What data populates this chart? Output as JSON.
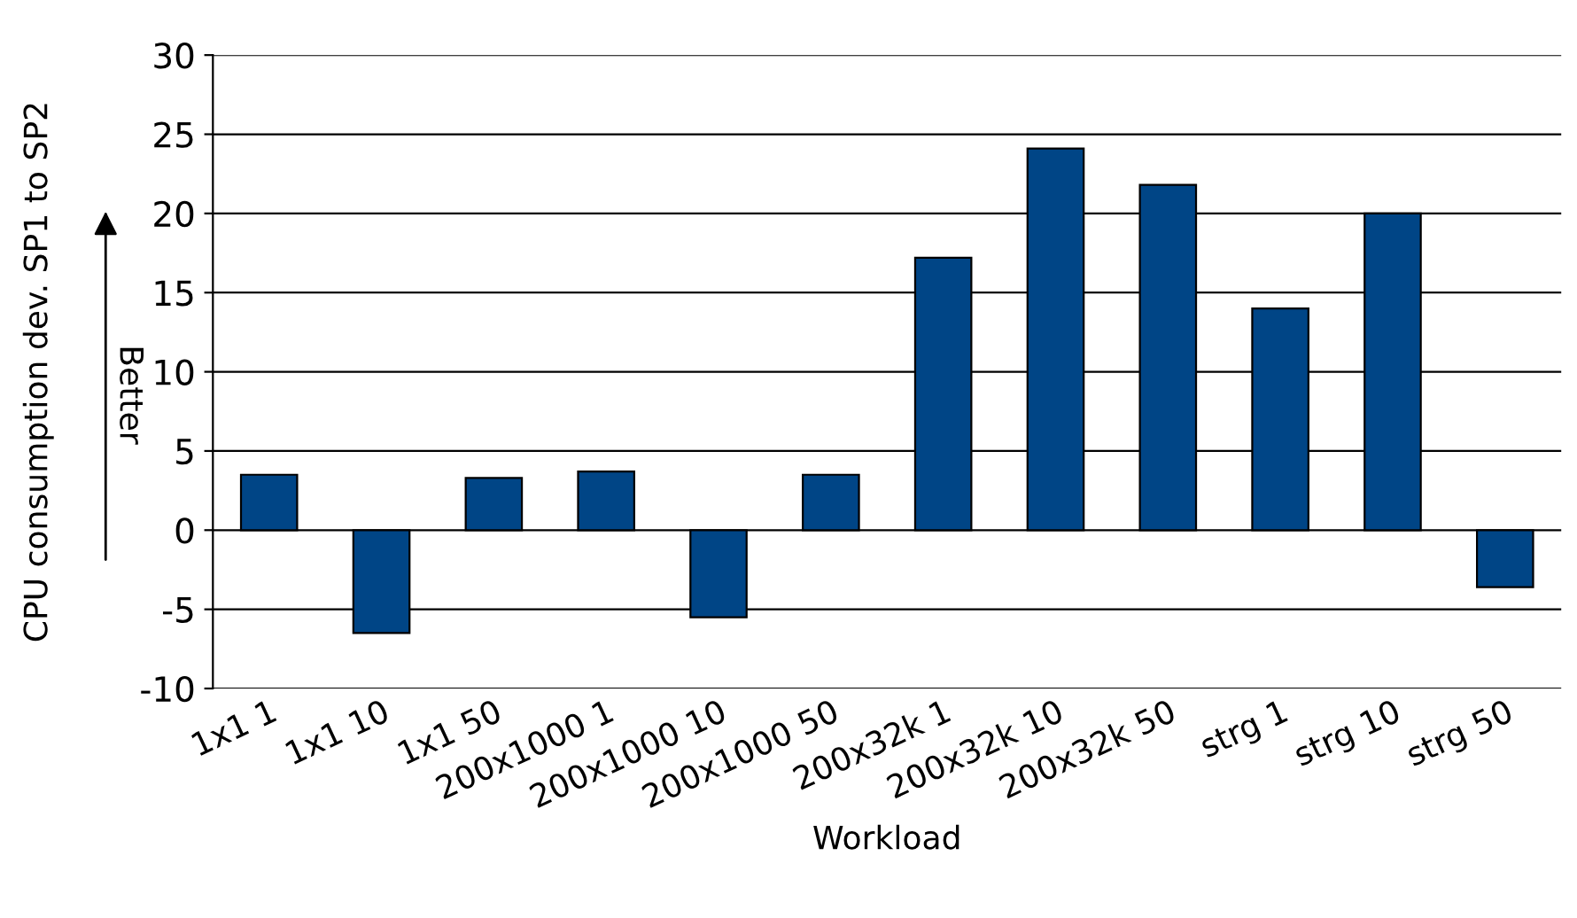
{
  "chart_data": {
    "type": "bar",
    "xlabel": "Workload",
    "ylabel": "CPU consumption dev. SP1 to SP2",
    "categories": [
      "1x1 1",
      "1x1 10",
      "1x1 50",
      "200x1000 1",
      "200x1000 10",
      "200x1000 50",
      "200x32k 1",
      "200x32k 10",
      "200x32k 50",
      "strg 1",
      "strg 10",
      "strg 50"
    ],
    "values": [
      3.5,
      -6.5,
      3.3,
      3.7,
      -5.5,
      3.5,
      17.2,
      24.1,
      21.8,
      14.0,
      20.0,
      -3.6
    ],
    "color": "#004586",
    "ylim": [
      -10,
      30
    ],
    "yticks": [
      -10,
      -5,
      0,
      5,
      10,
      15,
      20,
      25,
      30
    ],
    "grid": "y",
    "annotations": [
      "Better"
    ]
  }
}
